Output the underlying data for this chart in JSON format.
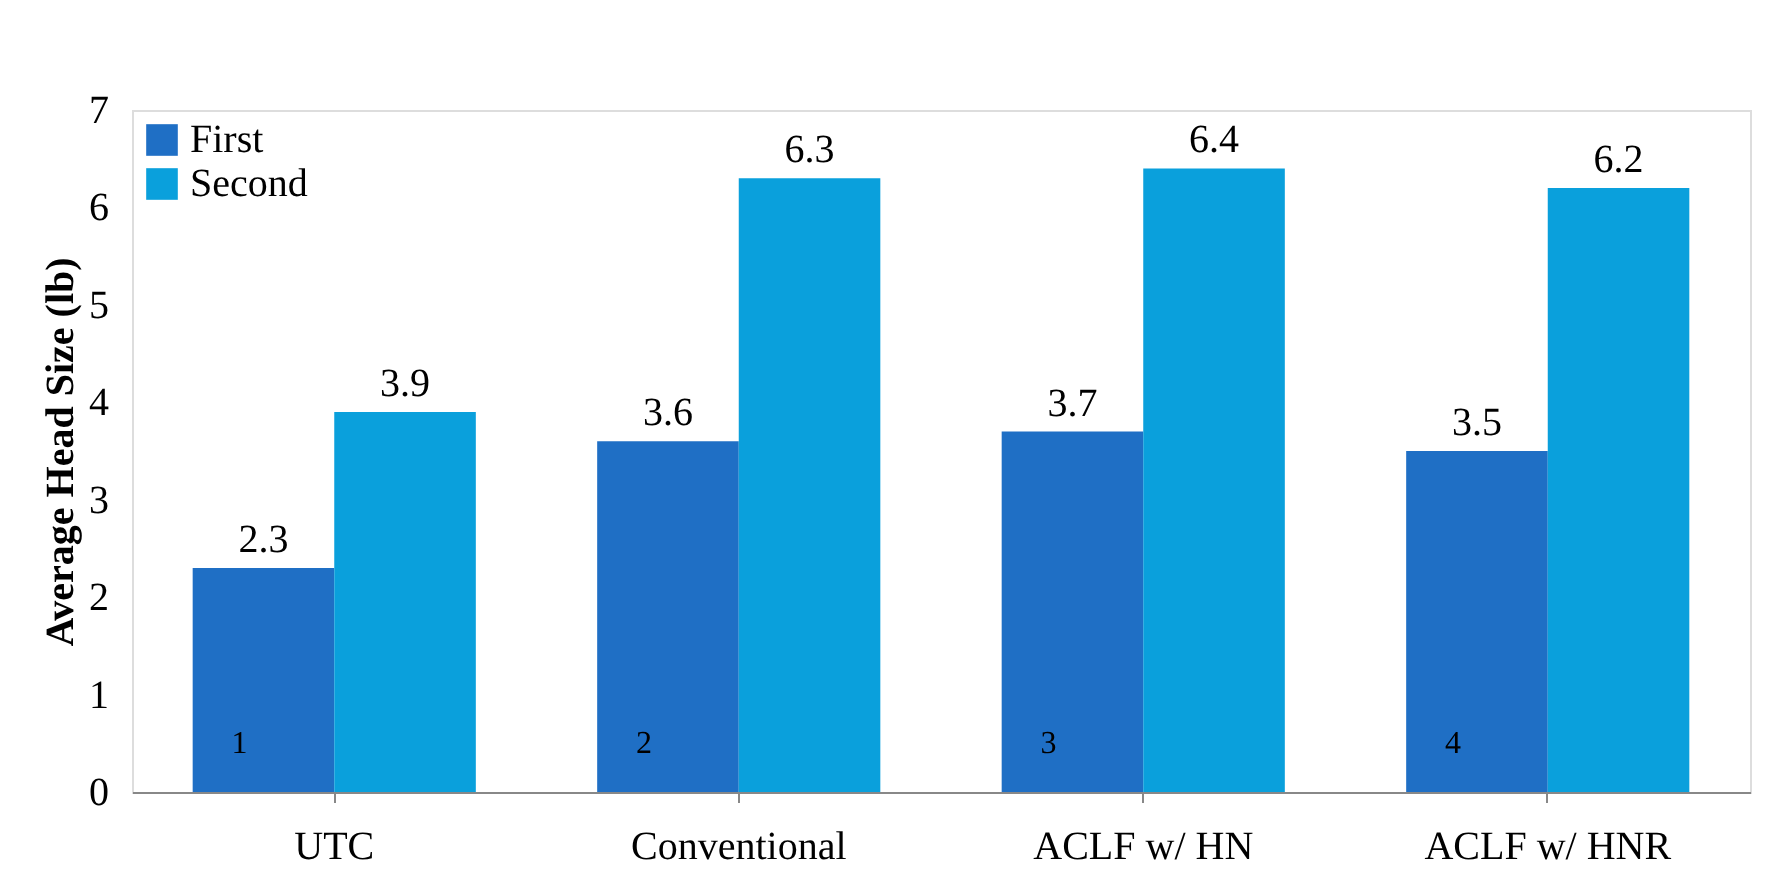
{
  "chart_data": {
    "type": "bar",
    "ylabel": "Average Head Size (lb)",
    "categories": [
      "UTC",
      "Conventional",
      "ACLF w/ HN",
      "ACLF w/ HNR"
    ],
    "series": [
      {
        "name": "First",
        "color": "#1f6fc5",
        "values": [
          2.3,
          3.6,
          3.7,
          3.5
        ]
      },
      {
        "name": "Second",
        "color": "#0aa0dc",
        "values": [
          3.9,
          6.3,
          6.4,
          6.2
        ]
      }
    ],
    "ylim": [
      0,
      7
    ],
    "yticks": [
      0,
      1,
      2,
      3,
      4,
      5,
      6,
      7
    ],
    "grid": false,
    "legend": "top left",
    "data_labels": true,
    "annotations": [
      {
        "text": "1",
        "x": "UTC",
        "y": 0.5
      },
      {
        "text": "2",
        "x": "Conventional",
        "y": 0.5
      },
      {
        "text": "3",
        "x": "ACLF w/ HN",
        "y": 0.5
      },
      {
        "text": "4",
        "x": "ACLF w/ HNR",
        "y": 0.5
      }
    ]
  }
}
